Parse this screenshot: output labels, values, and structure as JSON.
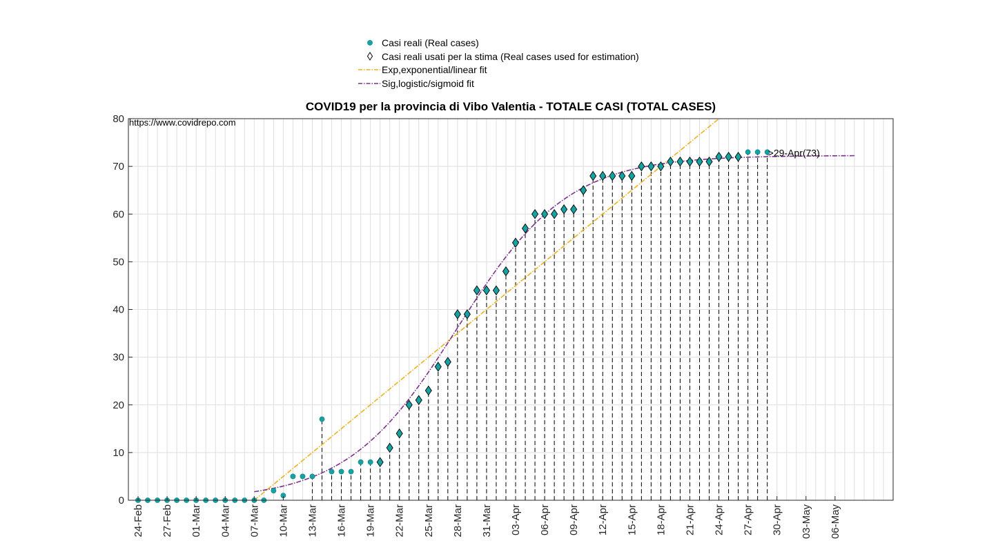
{
  "source_text": "https://www.covidrepo.com",
  "colors": {
    "real": "#17a2a2",
    "exp_fit": "#edb120",
    "sig_fit": "#7e2f8e",
    "grid": "#dedede",
    "stem": "#000000"
  },
  "chart_data": {
    "type": "scatter",
    "title": "COVID19 per la provincia di Vibo Valentia - TOTALE CASI (TOTAL CASES)",
    "xlabel": "",
    "ylabel": "",
    "ylim": [
      0,
      80
    ],
    "yticks": [
      0,
      10,
      20,
      30,
      40,
      50,
      60,
      70,
      80
    ],
    "xlim": [
      "2020-02-23",
      "2020-05-12"
    ],
    "x_tick_labels": [
      "24-Feb",
      "27-Feb",
      "01-Mar",
      "04-Mar",
      "07-Mar",
      "10-Mar",
      "13-Mar",
      "16-Mar",
      "19-Mar",
      "22-Mar",
      "25-Mar",
      "28-Mar",
      "31-Mar",
      "03-Apr",
      "06-Apr",
      "09-Apr",
      "12-Apr",
      "15-Apr",
      "18-Apr",
      "21-Apr",
      "24-Apr",
      "27-Apr",
      "30-Apr",
      "03-May",
      "06-May"
    ],
    "grid": true,
    "legend_position": "top-center",
    "legend": [
      "Casi reali (Real cases)",
      "Casi reali usati per la stima (Real cases used for estimation)",
      "Exp,exponential/linear fit",
      "Sig,logistic/sigmoid fit"
    ],
    "series": [
      {
        "name": "Casi reali (Real cases)",
        "x_start": "2020-02-24",
        "values": [
          0,
          0,
          0,
          0,
          0,
          0,
          0,
          0,
          0,
          0,
          0,
          0,
          0,
          0,
          2,
          1,
          5,
          5,
          5,
          17,
          6,
          6,
          6,
          8,
          8,
          8,
          11,
          14,
          20,
          21,
          23,
          28,
          29,
          39,
          39,
          44,
          44,
          44,
          48,
          54,
          57,
          60,
          60,
          60,
          61,
          61,
          65,
          68,
          68,
          68,
          68,
          68,
          70,
          70,
          70,
          71,
          71,
          71,
          71,
          71,
          72,
          72,
          72,
          73,
          73,
          73
        ]
      },
      {
        "name": "Casi reali usati per la stima (Real cases used for estimation)",
        "x_start": "2020-03-20",
        "values": [
          8,
          11,
          14,
          20,
          21,
          23,
          28,
          29,
          39,
          39,
          44,
          44,
          44,
          48,
          54,
          57,
          60,
          60,
          60,
          61,
          61,
          65,
          68,
          68,
          68,
          68,
          68,
          70,
          70,
          70,
          71,
          71,
          71,
          71,
          71,
          72,
          72,
          72
        ]
      },
      {
        "name": "Exp,exponential/linear fit",
        "points": [
          [
            "2020-03-07",
            0
          ],
          [
            "2020-04-24",
            80
          ]
        ]
      },
      {
        "name": "Sig,logistic/sigmoid fit",
        "x_range": [
          "2020-03-07",
          "2020-05-08"
        ],
        "logistic": {
          "K": 72.3,
          "midpoint": "2020-03-28",
          "rate_per_day": 0.175
        }
      }
    ],
    "stems_x_range": [
      "2020-03-13",
      "2020-05-08"
    ],
    "annotations": [
      {
        "text": ">29-Apr(73)",
        "x": "2020-04-29",
        "y": 73
      }
    ]
  }
}
